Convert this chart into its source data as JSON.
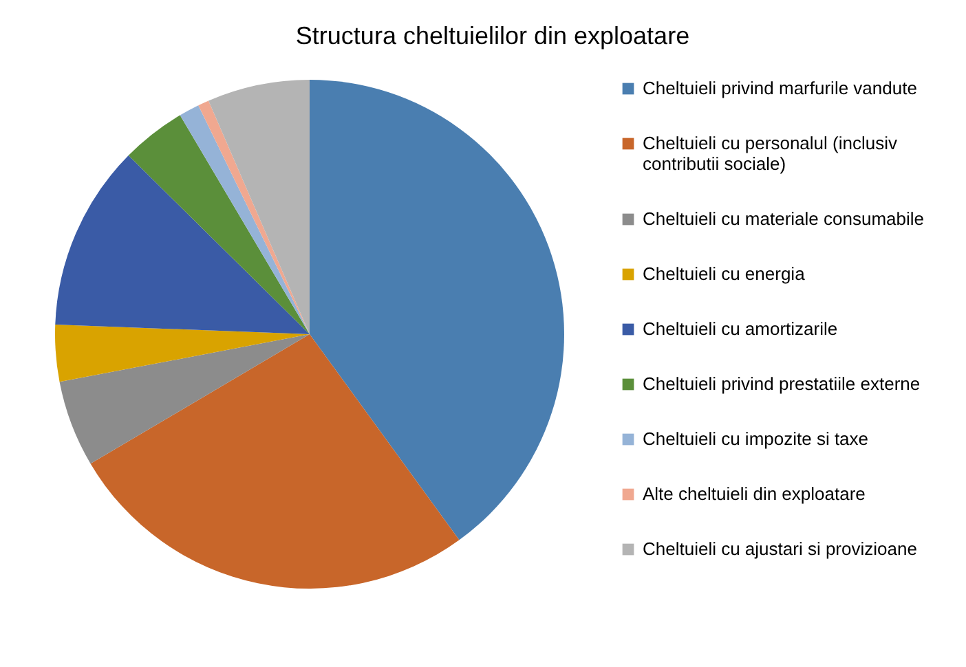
{
  "chart_data": {
    "type": "pie",
    "title": "Structura cheltuielilor din exploatare",
    "categories": [
      "Cheltuieli privind marfurile vandute",
      "Cheltuieli cu personalul (inclusiv contributii sociale)",
      "Cheltuieli cu  materiale consumabile",
      "Cheltuieli cu energia",
      "Cheltuieli cu amortizarile",
      "Cheltuieli privind prestatiile externe",
      "Cheltuieli cu impozite si taxe",
      "Alte cheltuieli din exploatare",
      "Cheltuieli cu ajustari si provizioane"
    ],
    "values": [
      40,
      26.5,
      5.5,
      3.6,
      11.8,
      4.1,
      1.3,
      0.7,
      6.5
    ],
    "colors": [
      "#4a7eb0",
      "#c8662a",
      "#8c8c8c",
      "#d9a300",
      "#3a5ba6",
      "#5b8f3a",
      "#95b3d7",
      "#f0a890",
      "#b4b4b4"
    ],
    "legend": "right"
  }
}
